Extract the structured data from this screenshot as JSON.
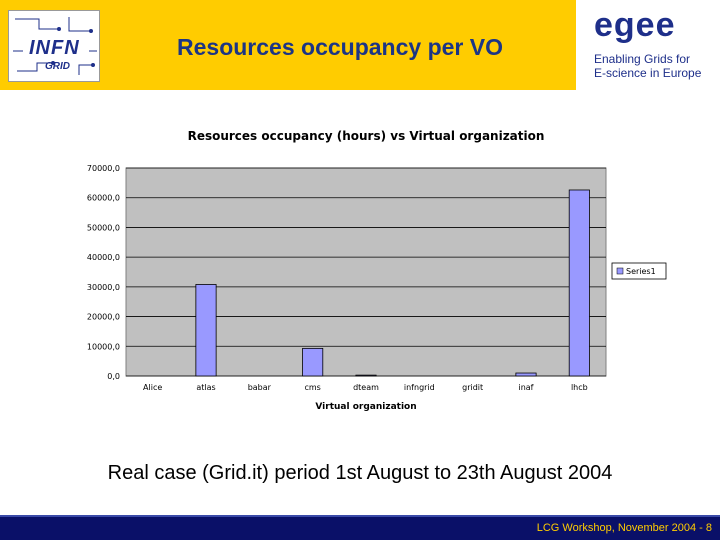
{
  "header": {
    "title": "Resources occupancy per VO",
    "left_logo": {
      "main": "INFN",
      "sub": "GRID"
    },
    "right_logo": {
      "word": "egee",
      "tagline_line1": "Enabling Grids for",
      "tagline_line2": "E-science in Europe"
    },
    "colors": {
      "band": "#ffcc00",
      "title": "#1c3585"
    }
  },
  "chart_data": {
    "type": "bar",
    "title": "Resources occupancy (hours) vs Virtual organization",
    "xlabel": "Virtual organization",
    "ylabel": "",
    "categories": [
      "Alice",
      "atlas",
      "babar",
      "cms",
      "dteam",
      "infngrid",
      "gridit",
      "inaf",
      "lhcb"
    ],
    "series": [
      {
        "name": "Series1",
        "values": [
          0,
          30800,
          0,
          9300,
          300,
          0,
          0,
          1000,
          62600
        ]
      }
    ],
    "ylim": [
      0,
      70000
    ],
    "yticks": [
      "0,0",
      "10000,0",
      "20000,0",
      "30000,0",
      "40000,0",
      "50000,0",
      "60000,0",
      "70000,0"
    ],
    "grid": true,
    "legend": "right",
    "colors": {
      "bar": "#9999ff",
      "plot_bg": "#c0c0c0"
    }
  },
  "caption": "Real case (Grid.it) period 1st August to 23th August 2004",
  "footer": {
    "text": "LCG Workshop,  November 2004 - 8"
  }
}
